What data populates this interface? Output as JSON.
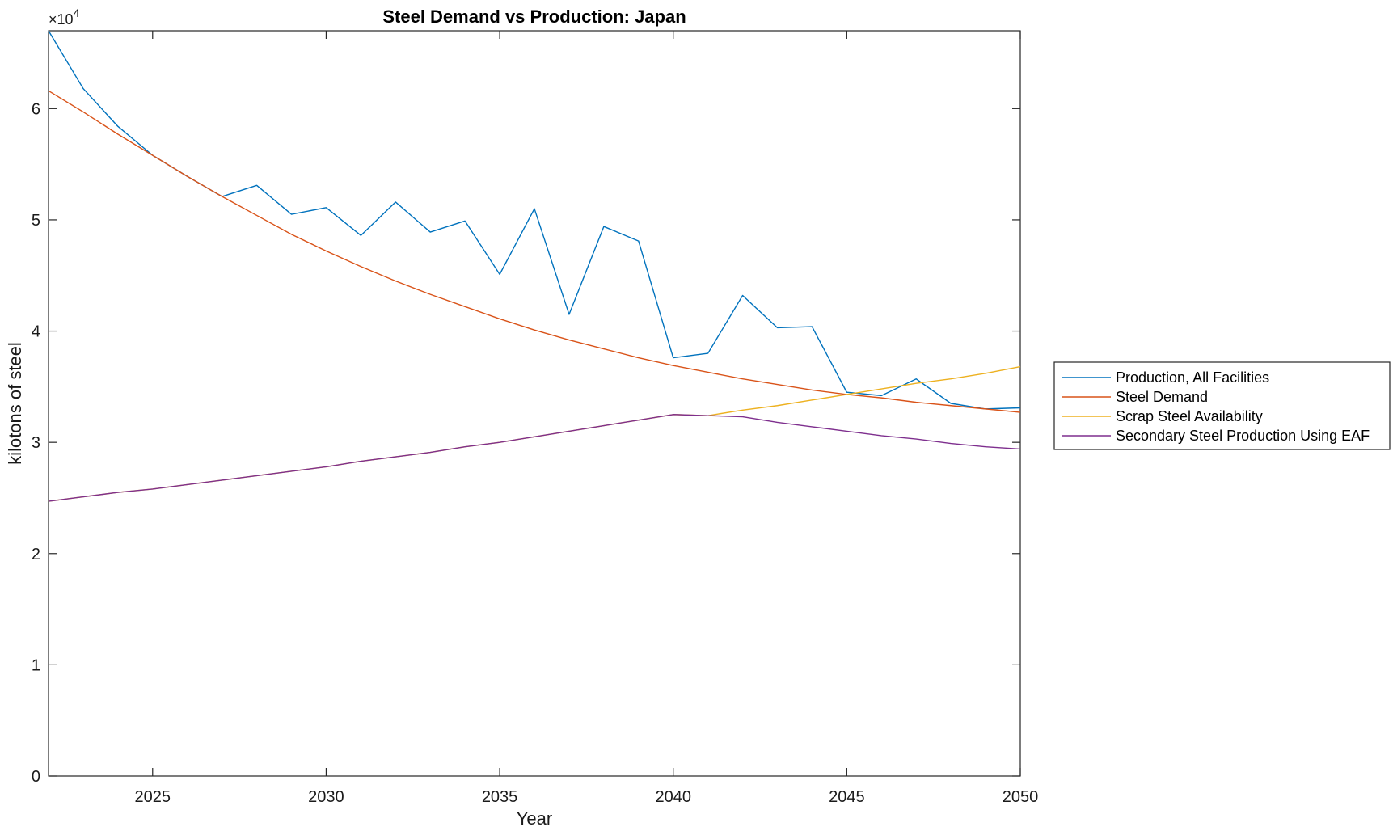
{
  "chart_data": {
    "type": "line",
    "title": "Steel Demand vs Production: Japan",
    "xlabel": "Year",
    "ylabel": "kilotons of steel",
    "xlim": [
      2022,
      2050
    ],
    "ylim": [
      0,
      67000
    ],
    "y_multiplier": {
      "base": "×10",
      "exponent": "4"
    },
    "x_ticks": [
      2025,
      2030,
      2035,
      2040,
      2045,
      2050
    ],
    "x_tick_labels": [
      "2025",
      "2030",
      "2035",
      "2040",
      "2045",
      "2050"
    ],
    "y_ticks": [
      0,
      10000,
      20000,
      30000,
      40000,
      50000,
      60000
    ],
    "y_tick_labels": [
      "0",
      "1",
      "2",
      "3",
      "4",
      "5",
      "6"
    ],
    "grid": false,
    "legend_position": "outside-right",
    "x": [
      2022,
      2023,
      2024,
      2025,
      2026,
      2027,
      2028,
      2029,
      2030,
      2031,
      2032,
      2033,
      2034,
      2035,
      2036,
      2037,
      2038,
      2039,
      2040,
      2041,
      2042,
      2043,
      2044,
      2045,
      2046,
      2047,
      2048,
      2049,
      2050
    ],
    "series": [
      {
        "name": "Production, All Facilities",
        "color": "#0072BD",
        "values": [
          67000,
          61800,
          58400,
          55800,
          53900,
          52100,
          53100,
          50500,
          51100,
          48600,
          51600,
          48900,
          49900,
          45100,
          51000,
          41500,
          49400,
          48100,
          37600,
          38000,
          43200,
          40300,
          40400,
          34500,
          34200,
          35700,
          33500,
          33000,
          33100
        ]
      },
      {
        "name": "Steel Demand",
        "color": "#D95319",
        "values": [
          61600,
          59700,
          57700,
          55800,
          53900,
          52100,
          50400,
          48700,
          47200,
          45800,
          44500,
          43300,
          42200,
          41100,
          40100,
          39200,
          38400,
          37600,
          36900,
          36300,
          35700,
          35200,
          34700,
          34300,
          34000,
          33600,
          33300,
          33000,
          32700
        ]
      },
      {
        "name": "Scrap Steel Availability",
        "color": "#EDB120",
        "values": [
          24700,
          25100,
          25500,
          25800,
          26200,
          26600,
          27000,
          27400,
          27800,
          28300,
          28700,
          29100,
          29600,
          30000,
          30500,
          31000,
          31500,
          32000,
          32500,
          32400,
          32900,
          33300,
          33800,
          34300,
          34800,
          35300,
          35700,
          36200,
          36800
        ]
      },
      {
        "name": "Secondary Steel Production Using EAF",
        "color": "#7E2F8E",
        "values": [
          24700,
          25100,
          25500,
          25800,
          26200,
          26600,
          27000,
          27400,
          27800,
          28300,
          28700,
          29100,
          29600,
          30000,
          30500,
          31000,
          31500,
          32000,
          32500,
          32400,
          32300,
          31800,
          31400,
          31000,
          30600,
          30300,
          29900,
          29600,
          29400
        ]
      }
    ]
  }
}
